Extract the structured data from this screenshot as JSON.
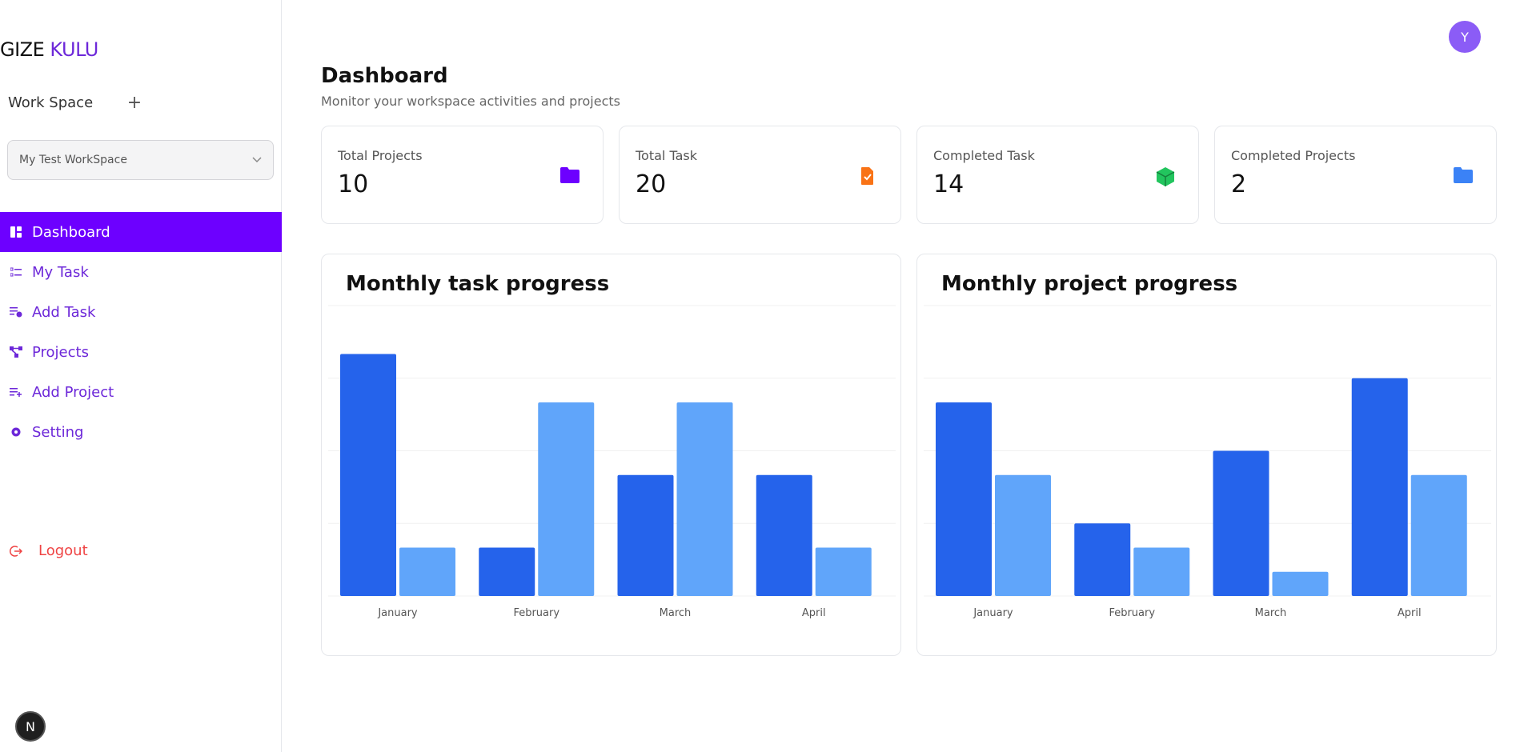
{
  "brand": {
    "part1": "GIZE ",
    "part2": "KULU"
  },
  "workspace": {
    "label": "Work Space",
    "add": "+",
    "selected": "My Test WorkSpace"
  },
  "nav": [
    {
      "label": "Dashboard",
      "icon": "dashboard-icon",
      "active": true
    },
    {
      "label": "My Task",
      "icon": "task-list-icon",
      "active": false
    },
    {
      "label": "Add Task",
      "icon": "add-task-icon",
      "active": false
    },
    {
      "label": "Projects",
      "icon": "projects-icon",
      "active": false
    },
    {
      "label": "Add Project",
      "icon": "add-project-icon",
      "active": false
    },
    {
      "label": "Setting",
      "icon": "gear-icon",
      "active": false
    }
  ],
  "logout": "Logout",
  "n_badge": "N",
  "avatar": "Y",
  "page": {
    "title": "Dashboard",
    "subtitle": "Monitor your workspace activities and projects"
  },
  "stats": [
    {
      "label": "Total Projects",
      "value": "10",
      "icon": "folder-icon",
      "color": "#6d00ff"
    },
    {
      "label": "Total Task",
      "value": "20",
      "icon": "file-check-icon",
      "color": "#f97316"
    },
    {
      "label": "Completed Task",
      "value": "14",
      "icon": "cube-icon",
      "color": "#22c55e"
    },
    {
      "label": "Completed Projects",
      "value": "2",
      "icon": "folder-icon",
      "color": "#3b82f6"
    }
  ],
  "colors": {
    "series_dark": "#2563eb",
    "series_light": "#60a5fa",
    "accent": "#6d00ff",
    "danger": "#ef4444"
  },
  "chart_data": [
    {
      "type": "bar",
      "title": "Monthly task progress",
      "categories": [
        "January",
        "February",
        "March",
        "April"
      ],
      "series": [
        {
          "values": [
            10,
            2,
            5,
            5
          ]
        },
        {
          "values": [
            2,
            8,
            8,
            2
          ]
        }
      ],
      "ylim": [
        0,
        12
      ],
      "grid": true
    },
    {
      "type": "bar",
      "title": "Monthly project progress",
      "categories": [
        "January",
        "February",
        "March",
        "April"
      ],
      "series": [
        {
          "values": [
            8,
            3,
            6,
            9
          ]
        },
        {
          "values": [
            5,
            2,
            1,
            5
          ]
        }
      ],
      "ylim": [
        0,
        12
      ],
      "grid": true
    }
  ]
}
